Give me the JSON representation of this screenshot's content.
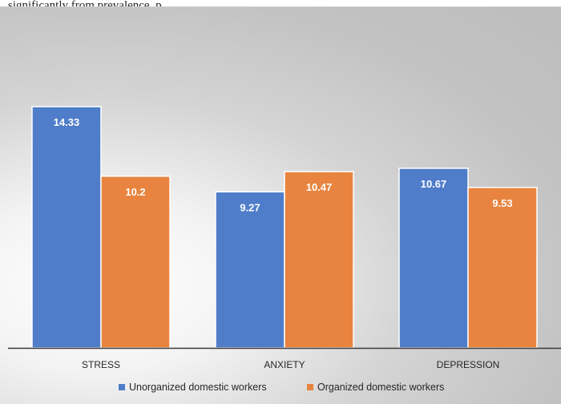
{
  "caption_fragment": "significantly from prevalence, p",
  "chart_data": {
    "type": "bar",
    "categories": [
      "STRESS",
      "ANXIETY",
      "DEPRESSION"
    ],
    "series": [
      {
        "name": "Unorganized domestic workers",
        "values": [
          14.33,
          9.27,
          10.67
        ],
        "labels": [
          "14.33",
          "9.27",
          "10.67"
        ],
        "color": "#4f7dc9"
      },
      {
        "name": "Organized domestic workers",
        "values": [
          10.2,
          10.47,
          9.53
        ],
        "labels": [
          "10.2",
          "10.47",
          "9.53"
        ],
        "color": "#e8843f"
      }
    ],
    "ylim": [
      0,
      16
    ],
    "grid": false,
    "legend_position": "bottom"
  }
}
